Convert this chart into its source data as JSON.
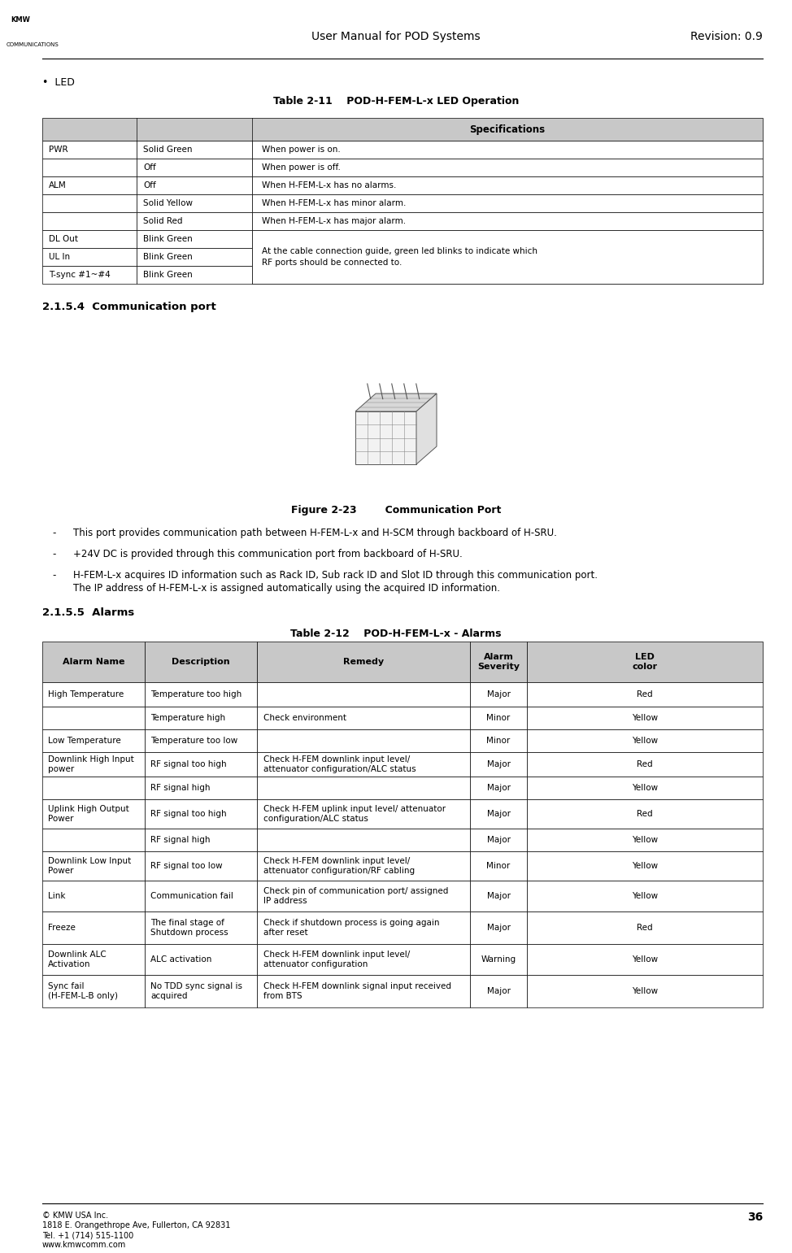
{
  "page_width": 9.74,
  "page_height": 15.41,
  "dpi": 100,
  "header_title": "User Manual for POD Systems",
  "header_revision": "Revision: 0.9",
  "page_number": "36",
  "footer_company": "© KMW USA Inc.",
  "footer_address": "1818 E. Orangethrope Ave, Fullerton, CA 92831",
  "footer_tel": "Tel. +1 (714) 515-1100",
  "footer_web": "www.kmwcomm.com",
  "bullet_led": "LED",
  "table1_title": "Table 2-11    POD-H-FEM-L-x LED Operation",
  "table1_header": "Specifications",
  "table1_rows": [
    [
      "PWR",
      "Solid Green",
      "When power is on."
    ],
    [
      "",
      "Off",
      "When power is off."
    ],
    [
      "ALM",
      "Off",
      "When H-FEM-L-x has no alarms."
    ],
    [
      "",
      "Solid Yellow",
      "When H-FEM-L-x has minor alarm."
    ],
    [
      "",
      "Solid Red",
      "When H-FEM-L-x has major alarm."
    ],
    [
      "DL Out",
      "Blink Green",
      "At the cable connection guide, green led blinks to indicate which\nRF ports should be connected to."
    ],
    [
      "UL In",
      "Blink Green",
      ""
    ],
    [
      "T-sync #1~#4",
      "Blink Green",
      ""
    ]
  ],
  "section_215_4": "2.1.5.4  Communication port",
  "figure_caption": "Figure 2-23        Communication Port",
  "bullets_comm": [
    "This port provides communication path between H-FEM-L-x and H-SCM through backboard of H-SRU.",
    "+24V DC is provided through this communication port from backboard of H-SRU.",
    "H-FEM-L-x acquires ID information such as Rack ID, Sub rack ID and Slot ID through this communication port.\nThe IP address of H-FEM-L-x is assigned automatically using the acquired ID information."
  ],
  "section_215_5": "2.1.5.5  Alarms",
  "table2_title": "Table 2-12    POD-H-FEM-L-x - Alarms",
  "table2_headers": [
    "Alarm Name",
    "Description",
    "Remedy",
    "Alarm\nSeverity",
    "LED\ncolor"
  ],
  "table2_rows": [
    [
      "High Temperature",
      "Temperature too high",
      "",
      "Major",
      "Red"
    ],
    [
      "",
      "Temperature high",
      "Check environment",
      "Minor",
      "Yellow"
    ],
    [
      "Low Temperature",
      "Temperature too low",
      "",
      "Minor",
      "Yellow"
    ],
    [
      "Downlink High Input\npower",
      "RF signal too high",
      "Check H-FEM downlink input level/\nattenuator configuration/ALC status",
      "Major",
      "Red"
    ],
    [
      "",
      "RF signal high",
      "",
      "Major",
      "Yellow"
    ],
    [
      "Uplink High Output\nPower",
      "RF signal too high",
      "Check H-FEM uplink input level/ attenuator\nconfiguration/ALC status",
      "Major",
      "Red"
    ],
    [
      "",
      "RF signal high",
      "",
      "Major",
      "Yellow"
    ],
    [
      "Downlink Low Input\nPower",
      "RF signal too low",
      "Check H-FEM downlink input level/\nattenuator configuration/RF cabling",
      "Minor",
      "Yellow"
    ],
    [
      "Link",
      "Communication fail",
      "Check pin of communication port/ assigned\nIP address",
      "Major",
      "Yellow"
    ],
    [
      "Freeze",
      "The final stage of\nShutdown process",
      "Check if shutdown process is going again\nafter reset",
      "Major",
      "Red"
    ],
    [
      "Downlink ALC\nActivation",
      "ALC activation",
      "Check H-FEM downlink input level/\nattenuator configuration",
      "Warning",
      "Yellow"
    ],
    [
      "Sync fail\n(H-FEM-L-B only)",
      "No TDD sync signal is\nacquired",
      "Check H-FEM downlink signal input received\nfrom BTS",
      "Major",
      "Yellow"
    ]
  ],
  "header_bg": "#c8c8c8",
  "cell_bg": "#ffffff",
  "line_color": "#000000",
  "font_name": "DejaVu Sans"
}
